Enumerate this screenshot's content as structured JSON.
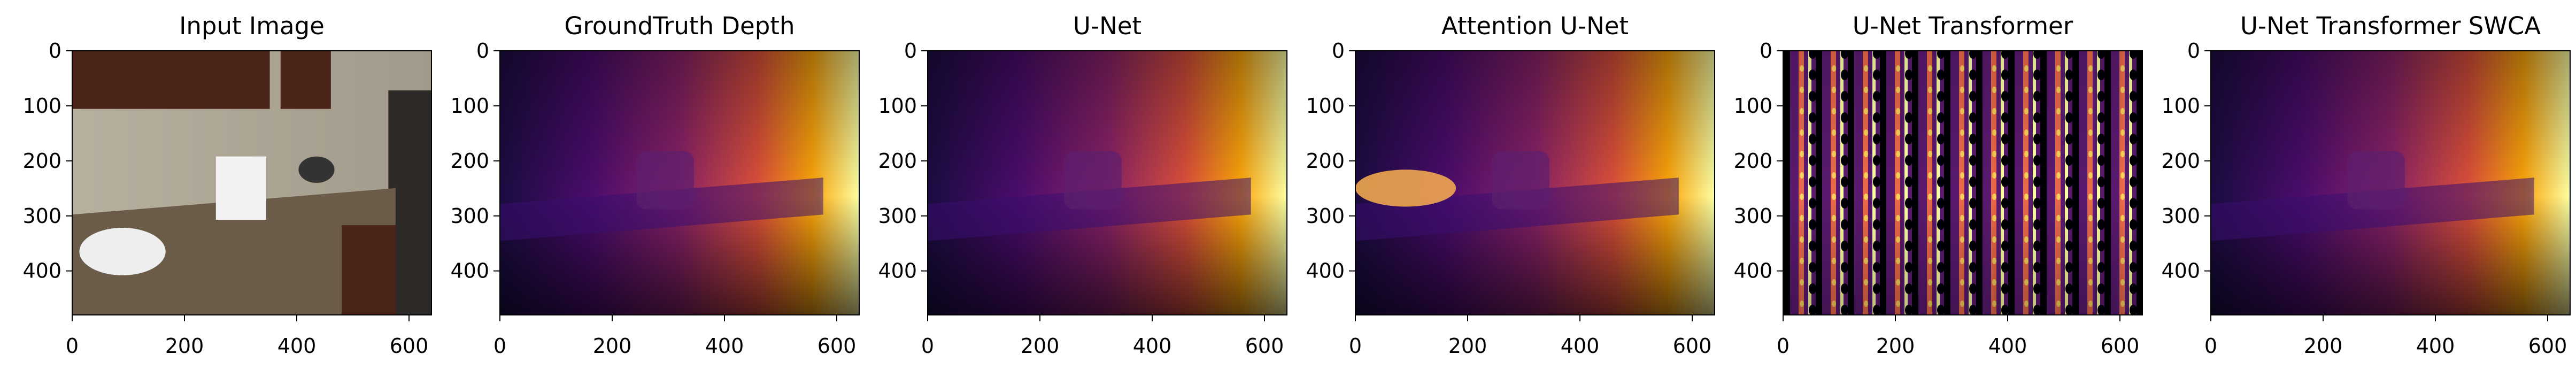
{
  "figure": {
    "colormap": "magma",
    "panels": [
      {
        "id": "input",
        "title": "Input Image",
        "content": "rgb-photo-kitchen"
      },
      {
        "id": "gt",
        "title": "GroundTruth Depth",
        "content": "depth-map"
      },
      {
        "id": "unet",
        "title": "U-Net",
        "content": "depth-map-smooth"
      },
      {
        "id": "attn",
        "title": "Attention U-Net",
        "content": "depth-map-bright-left"
      },
      {
        "id": "unettr",
        "title": "U-Net Transformer",
        "content": "noisy-stripes"
      },
      {
        "id": "swca",
        "title": "U-Net Transformer SWCA",
        "content": "depth-map-smooth"
      }
    ],
    "axes": {
      "x_ticks": [
        "0",
        "200",
        "400",
        "600"
      ],
      "y_ticks": [
        "0",
        "100",
        "200",
        "300",
        "400"
      ],
      "x_range": [
        0,
        640
      ],
      "y_range": [
        0,
        480
      ],
      "y_inverted": true
    }
  }
}
